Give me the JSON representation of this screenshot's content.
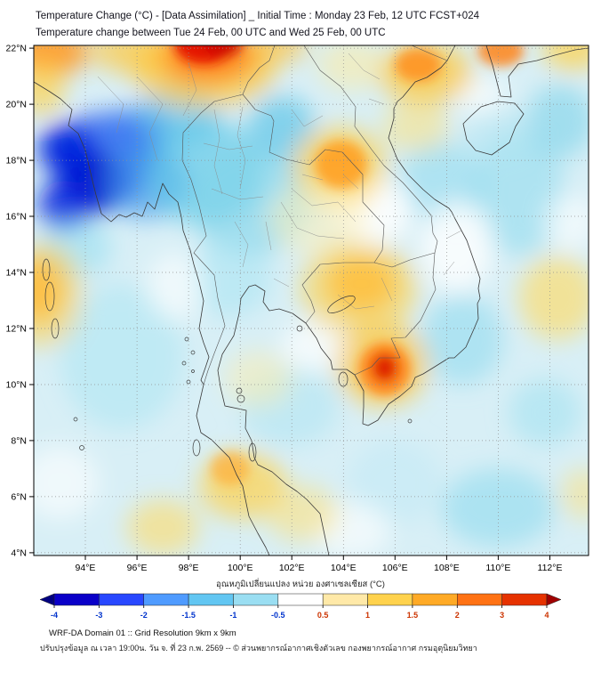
{
  "header": {
    "line1": "Temperature Change (°C) - [Data Assimilation] _ Initial Time : Monday 23 Feb, 12 UTC FCST+024",
    "line2": "Temperature change between Tue 24 Feb, 00 UTC and Wed 25 Feb, 00 UTC"
  },
  "map": {
    "base_color": "#d8eff6",
    "grid_color": "#909090",
    "frame_color": "#000000",
    "lat_ticks": [
      "22°N",
      "20°N",
      "18°N",
      "16°N",
      "14°N",
      "12°N",
      "10°N",
      "8°N",
      "6°N",
      "4°N"
    ],
    "lat_values": [
      22,
      20,
      18,
      16,
      14,
      12,
      10,
      8,
      6,
      4
    ],
    "lon_ticks": [
      "94°E",
      "96°E",
      "98°E",
      "100°E",
      "102°E",
      "104°E",
      "106°E",
      "108°E",
      "110°E",
      "112°E"
    ],
    "lon_values": [
      94,
      96,
      98,
      100,
      102,
      104,
      106,
      108,
      110,
      112
    ],
    "bounds": {
      "lon_min": 92.0,
      "lon_max": 113.5,
      "lat_min": 3.9,
      "lat_max": 22.1
    },
    "field_blobs": [
      {
        "lon": 94.8,
        "lat": 18.1,
        "rx": 2.1,
        "ry": 1.6,
        "color": "#2e5cf0",
        "opacity": 0.8,
        "blur": "big"
      },
      {
        "lon": 94.2,
        "lat": 17.2,
        "rx": 1.35,
        "ry": 1.15,
        "color": "#0011cc",
        "opacity": 1,
        "blur": "big"
      },
      {
        "lon": 93.3,
        "lat": 18.4,
        "rx": 1.1,
        "ry": 0.9,
        "color": "#0022dd",
        "opacity": 0.95,
        "blur": "big"
      },
      {
        "lon": 93.2,
        "lat": 16.4,
        "rx": 1.0,
        "ry": 0.9,
        "color": "#0b2fe0",
        "opacity": 0.9,
        "blur": "big"
      },
      {
        "lon": 95.9,
        "lat": 18.9,
        "rx": 1.5,
        "ry": 1.0,
        "color": "#3c7ef2",
        "opacity": 0.7,
        "blur": "big"
      },
      {
        "lon": 96.3,
        "lat": 17.2,
        "rx": 1.7,
        "ry": 1.3,
        "color": "#3f97ea",
        "opacity": 0.65,
        "blur": "big"
      },
      {
        "lon": 97.6,
        "lat": 19.6,
        "rx": 1.6,
        "ry": 1.1,
        "color": "#55bce6",
        "opacity": 0.6,
        "blur": "big"
      },
      {
        "lon": 98.6,
        "lat": 17.6,
        "rx": 2.3,
        "ry": 1.9,
        "color": "#5ec7e8",
        "opacity": 0.65,
        "blur": "big"
      },
      {
        "lon": 100.4,
        "lat": 16.6,
        "rx": 2.4,
        "ry": 2.0,
        "color": "#7fd4ea",
        "opacity": 0.6,
        "blur": "big"
      },
      {
        "lon": 101.6,
        "lat": 19.2,
        "rx": 1.3,
        "ry": 1.1,
        "color": "#54c2e6",
        "opacity": 0.65,
        "blur": "big"
      },
      {
        "lon": 99.6,
        "lat": 13.8,
        "rx": 1.6,
        "ry": 1.4,
        "color": "#a5e4f2",
        "opacity": 0.55,
        "blur": "big"
      },
      {
        "lon": 95.4,
        "lat": 11.0,
        "rx": 2.4,
        "ry": 2.6,
        "color": "#abe5f3",
        "opacity": 0.55,
        "blur": "big"
      },
      {
        "lon": 93.6,
        "lat": 14.9,
        "rx": 1.4,
        "ry": 1.1,
        "color": "#8fdcf0",
        "opacity": 0.55,
        "blur": "big"
      },
      {
        "lon": 101.9,
        "lat": 9.2,
        "rx": 1.9,
        "ry": 1.4,
        "color": "#a9e4f2",
        "opacity": 0.5,
        "blur": "big"
      },
      {
        "lon": 107.8,
        "lat": 17.2,
        "rx": 1.7,
        "ry": 1.5,
        "color": "#8ad9ee",
        "opacity": 0.55,
        "blur": "big"
      },
      {
        "lon": 110.8,
        "lat": 16.8,
        "rx": 1.8,
        "ry": 2.2,
        "color": "#93dcef",
        "opacity": 0.6,
        "blur": "big"
      },
      {
        "lon": 108.6,
        "lat": 11.6,
        "rx": 1.6,
        "ry": 1.6,
        "color": "#8ad8ee",
        "opacity": 0.55,
        "blur": "big"
      },
      {
        "lon": 111.8,
        "lat": 9.0,
        "rx": 1.4,
        "ry": 1.2,
        "color": "#9adfef",
        "opacity": 0.5,
        "blur": "big"
      },
      {
        "lon": 110.0,
        "lat": 5.6,
        "rx": 2.2,
        "ry": 1.4,
        "color": "#8fdaee",
        "opacity": 0.6,
        "blur": "big"
      },
      {
        "lon": 112.4,
        "lat": 19.4,
        "rx": 1.3,
        "ry": 1.3,
        "color": "#7dd2ea",
        "opacity": 0.6,
        "blur": "big"
      },
      {
        "lon": 106.0,
        "lat": 6.5,
        "rx": 1.8,
        "ry": 1.5,
        "color": "#bfeaf5",
        "opacity": 0.5,
        "blur": "big"
      },
      {
        "lon": 110.0,
        "lat": 19.0,
        "rx": 1.3,
        "ry": 1.0,
        "color": "#aee4f2",
        "opacity": 0.5,
        "blur": "big"
      },
      {
        "lon": 105.2,
        "lat": 16.2,
        "rx": 1.5,
        "ry": 1.2,
        "color": "#ffffff",
        "opacity": 0.85,
        "blur": "big"
      },
      {
        "lon": 108.4,
        "lat": 14.9,
        "rx": 1.4,
        "ry": 1.6,
        "color": "#ffffff",
        "opacity": 0.8,
        "blur": "big"
      },
      {
        "lon": 102.9,
        "lat": 11.4,
        "rx": 1.3,
        "ry": 0.9,
        "color": "#ffffff",
        "opacity": 0.7,
        "blur": "big"
      },
      {
        "lon": 97.5,
        "lat": 13.5,
        "rx": 1.1,
        "ry": 1.2,
        "color": "#ffffff",
        "opacity": 0.6,
        "blur": "big"
      },
      {
        "lon": 93.0,
        "lat": 6.5,
        "rx": 1.5,
        "ry": 1.3,
        "color": "#ffffff",
        "opacity": 0.6,
        "blur": "big"
      },
      {
        "lon": 104.3,
        "lat": 4.8,
        "rx": 1.5,
        "ry": 1.0,
        "color": "#ffffff",
        "opacity": 0.6,
        "blur": "big"
      },
      {
        "lon": 112.8,
        "lat": 15.8,
        "rx": 1.0,
        "ry": 1.0,
        "color": "#ffffff",
        "opacity": 0.6,
        "blur": "big"
      },
      {
        "lon": 109.3,
        "lat": 20.3,
        "rx": 1.0,
        "ry": 0.7,
        "color": "#ffffff",
        "opacity": 0.65,
        "blur": "big"
      },
      {
        "lon": 98.6,
        "lat": 21.3,
        "rx": 2.8,
        "ry": 1.4,
        "color": "#ffc83e",
        "opacity": 0.75,
        "blur": "big"
      },
      {
        "lon": 98.7,
        "lat": 21.8,
        "rx": 1.9,
        "ry": 1.0,
        "color": "#ff7c10",
        "opacity": 0.9,
        "blur": "big"
      },
      {
        "lon": 98.6,
        "lat": 22.2,
        "rx": 1.15,
        "ry": 0.75,
        "color": "#e51800",
        "opacity": 1,
        "blur": "small"
      },
      {
        "lon": 99.3,
        "lat": 22.3,
        "rx": 0.8,
        "ry": 0.6,
        "color": "#cc1000",
        "opacity": 0.9,
        "blur": "small"
      },
      {
        "lon": 92.6,
        "lat": 21.9,
        "rx": 1.5,
        "ry": 0.9,
        "color": "#ff9a22",
        "opacity": 0.9,
        "blur": "big"
      },
      {
        "lon": 92.3,
        "lat": 20.6,
        "rx": 0.9,
        "ry": 1.0,
        "color": "#ffd24d",
        "opacity": 0.7,
        "blur": "big"
      },
      {
        "lon": 95.8,
        "lat": 21.9,
        "rx": 1.6,
        "ry": 0.8,
        "color": "#ffc83e",
        "opacity": 0.7,
        "blur": "big"
      },
      {
        "lon": 101.4,
        "lat": 22.1,
        "rx": 1.2,
        "ry": 0.6,
        "color": "#ffc13a",
        "opacity": 0.7,
        "blur": "big"
      },
      {
        "lon": 104.3,
        "lat": 21.4,
        "rx": 1.3,
        "ry": 0.9,
        "color": "#ffeb9e",
        "opacity": 0.55,
        "blur": "big"
      },
      {
        "lon": 107.2,
        "lat": 21.1,
        "rx": 1.8,
        "ry": 1.1,
        "color": "#ffc83e",
        "opacity": 0.75,
        "blur": "big"
      },
      {
        "lon": 106.9,
        "lat": 21.4,
        "rx": 0.9,
        "ry": 0.6,
        "color": "#ff8c1a",
        "opacity": 0.8,
        "blur": "small"
      },
      {
        "lon": 110.1,
        "lat": 21.9,
        "rx": 0.9,
        "ry": 0.55,
        "color": "#ff8414",
        "opacity": 0.85,
        "blur": "small"
      },
      {
        "lon": 112.9,
        "lat": 22.0,
        "rx": 1.2,
        "ry": 0.8,
        "color": "#ffd24d",
        "opacity": 0.75,
        "blur": "big"
      },
      {
        "lon": 106.8,
        "lat": 19.2,
        "rx": 1.3,
        "ry": 0.9,
        "color": "#ffe070",
        "opacity": 0.5,
        "blur": "big"
      },
      {
        "lon": 103.9,
        "lat": 17.85,
        "rx": 1.0,
        "ry": 0.85,
        "color": "#ffa126",
        "opacity": 0.9,
        "blur": "small"
      },
      {
        "lon": 103.85,
        "lat": 17.8,
        "rx": 1.8,
        "ry": 1.4,
        "color": "#ffce47",
        "opacity": 0.7,
        "blur": "big"
      },
      {
        "lon": 103.0,
        "lat": 15.9,
        "rx": 1.9,
        "ry": 1.3,
        "color": "#fff0b8",
        "opacity": 0.55,
        "blur": "big"
      },
      {
        "lon": 104.7,
        "lat": 13.6,
        "rx": 1.35,
        "ry": 1.0,
        "color": "#ffa126",
        "opacity": 0.85,
        "blur": "big"
      },
      {
        "lon": 104.6,
        "lat": 13.4,
        "rx": 2.3,
        "ry": 1.7,
        "color": "#ffd24d",
        "opacity": 0.6,
        "blur": "big"
      },
      {
        "lon": 105.5,
        "lat": 10.7,
        "rx": 1.8,
        "ry": 1.5,
        "color": "#ffc83e",
        "opacity": 0.7,
        "blur": "big"
      },
      {
        "lon": 105.6,
        "lat": 10.55,
        "rx": 1.0,
        "ry": 0.95,
        "color": "#ff8414",
        "opacity": 0.9,
        "blur": "small"
      },
      {
        "lon": 105.6,
        "lat": 10.6,
        "rx": 0.5,
        "ry": 0.5,
        "color": "#e02800",
        "opacity": 1,
        "blur": "small"
      },
      {
        "lon": 112.3,
        "lat": 13.1,
        "rx": 1.5,
        "ry": 1.5,
        "color": "#ffdb66",
        "opacity": 0.65,
        "blur": "big"
      },
      {
        "lon": 92.2,
        "lat": 13.4,
        "rx": 0.95,
        "ry": 1.15,
        "color": "#ffa126",
        "opacity": 0.85,
        "blur": "big"
      },
      {
        "lon": 92.4,
        "lat": 13.2,
        "rx": 1.5,
        "ry": 1.9,
        "color": "#ffd24d",
        "opacity": 0.55,
        "blur": "big"
      },
      {
        "lon": 100.7,
        "lat": 10.2,
        "rx": 1.3,
        "ry": 1.0,
        "color": "#ffeeaa",
        "opacity": 0.5,
        "blur": "big"
      },
      {
        "lon": 100.1,
        "lat": 6.4,
        "rx": 1.7,
        "ry": 1.2,
        "color": "#ffd24d",
        "opacity": 0.7,
        "blur": "big"
      },
      {
        "lon": 99.6,
        "lat": 7.0,
        "rx": 0.75,
        "ry": 0.6,
        "color": "#ffab30",
        "opacity": 0.65,
        "blur": "small"
      },
      {
        "lon": 97.0,
        "lat": 4.9,
        "rx": 1.4,
        "ry": 1.0,
        "color": "#ffdb66",
        "opacity": 0.6,
        "blur": "big"
      },
      {
        "lon": 102.4,
        "lat": 5.4,
        "rx": 1.4,
        "ry": 1.0,
        "color": "#ffe075",
        "opacity": 0.55,
        "blur": "big"
      },
      {
        "lon": 113.3,
        "lat": 6.1,
        "rx": 0.9,
        "ry": 0.9,
        "color": "#ffe075",
        "opacity": 0.5,
        "blur": "big"
      }
    ]
  },
  "colorbar": {
    "label": "อุณหภูมิเปลี่ยนแปลง หน่วย องศาเซลเซียส (°C)",
    "ticks": [
      "-4",
      "-3",
      "-2",
      "-1.5",
      "-1",
      "-0.5",
      "0.5",
      "1",
      "1.5",
      "2",
      "3",
      "4"
    ],
    "segment_colors": [
      "#0a00c8",
      "#2847ff",
      "#4f9bff",
      "#62c6f2",
      "#9adef2",
      "#ffffff",
      "#ffe9a8",
      "#ffd24d",
      "#ffaa26",
      "#ff7214",
      "#e63200"
    ],
    "arrow_left_color": "#000080",
    "arrow_right_color": "#a00000",
    "negative_tick_color": "#0033cc",
    "positive_tick_color": "#cc3300"
  },
  "footer": {
    "line1": "WRF-DA Domain 01 :: Grid Resolution 9km x 9km",
    "line2": "ปรับปรุงข้อมูล ณ เวลา 19:00น. วัน จ. ที่ 23 ก.พ. 2569 -- © ส่วนพยากรณ์อากาศเชิงตัวเลข กองพยากรณ์อากาศ กรมอุตุนิยมวิทยา"
  }
}
